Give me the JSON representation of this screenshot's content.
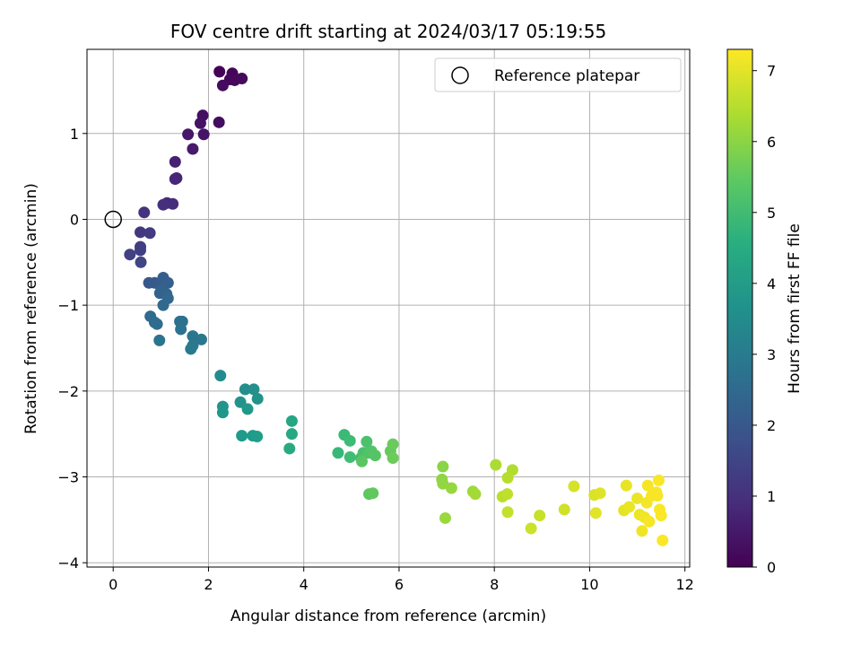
{
  "chart_data": {
    "type": "scatter",
    "title": "FOV centre drift starting at 2024/03/17 05:19:55",
    "xlabel": "Angular distance from reference (arcmin)",
    "ylabel": "Rotation from reference (arcmin)",
    "xlim": [
      -0.55,
      12.1
    ],
    "ylim": [
      -4.05,
      1.98
    ],
    "xticks": [
      0,
      2,
      4,
      6,
      8,
      10,
      12
    ],
    "yticks": [
      -4,
      -3,
      -2,
      -1,
      0,
      1
    ],
    "grid": true,
    "legend": {
      "position": "top-right",
      "entries": [
        "Reference platepar"
      ]
    },
    "reference_point": {
      "x": 0,
      "y": 0,
      "label": "Reference platepar"
    },
    "colorbar": {
      "label": "Hours from first FF file",
      "range": [
        0,
        7.3
      ],
      "ticks": [
        0,
        1,
        2,
        3,
        4,
        5,
        6,
        7
      ],
      "colormap": "viridis"
    },
    "points": [
      {
        "x": 2.23,
        "y": 1.72,
        "c": 0.05
      },
      {
        "x": 2.5,
        "y": 1.7,
        "c": 0.1
      },
      {
        "x": 2.45,
        "y": 1.63,
        "c": 0.12
      },
      {
        "x": 2.55,
        "y": 1.62,
        "c": 0.15
      },
      {
        "x": 2.7,
        "y": 1.64,
        "c": 0.18
      },
      {
        "x": 2.3,
        "y": 1.56,
        "c": 0.2
      },
      {
        "x": 2.22,
        "y": 1.13,
        "c": 0.25
      },
      {
        "x": 1.88,
        "y": 1.21,
        "c": 0.3
      },
      {
        "x": 1.83,
        "y": 1.12,
        "c": 0.35
      },
      {
        "x": 1.9,
        "y": 0.99,
        "c": 0.4
      },
      {
        "x": 1.57,
        "y": 0.99,
        "c": 0.45
      },
      {
        "x": 1.67,
        "y": 0.82,
        "c": 0.55
      },
      {
        "x": 1.3,
        "y": 0.67,
        "c": 0.65
      },
      {
        "x": 1.33,
        "y": 0.48,
        "c": 0.75
      },
      {
        "x": 1.3,
        "y": 0.47,
        "c": 0.8
      },
      {
        "x": 1.13,
        "y": 0.19,
        "c": 0.9
      },
      {
        "x": 1.25,
        "y": 0.18,
        "c": 0.95
      },
      {
        "x": 1.05,
        "y": 0.17,
        "c": 1.0
      },
      {
        "x": 0.65,
        "y": 0.08,
        "c": 1.1
      },
      {
        "x": 0.57,
        "y": -0.15,
        "c": 1.2
      },
      {
        "x": 0.77,
        "y": -0.16,
        "c": 1.25
      },
      {
        "x": 0.57,
        "y": -0.32,
        "c": 1.3
      },
      {
        "x": 0.57,
        "y": -0.36,
        "c": 1.35
      },
      {
        "x": 0.35,
        "y": -0.41,
        "c": 1.4
      },
      {
        "x": 0.58,
        "y": -0.5,
        "c": 1.5
      },
      {
        "x": 0.75,
        "y": -0.74,
        "c": 2.0
      },
      {
        "x": 0.87,
        "y": -0.74,
        "c": 2.05
      },
      {
        "x": 0.97,
        "y": -0.76,
        "c": 2.1
      },
      {
        "x": 1.05,
        "y": -0.68,
        "c": 2.15
      },
      {
        "x": 1.15,
        "y": -0.74,
        "c": 2.2
      },
      {
        "x": 1.02,
        "y": -0.82,
        "c": 2.25
      },
      {
        "x": 0.98,
        "y": -0.86,
        "c": 2.3
      },
      {
        "x": 1.12,
        "y": -0.87,
        "c": 2.35
      },
      {
        "x": 1.15,
        "y": -0.92,
        "c": 2.4
      },
      {
        "x": 1.05,
        "y": -1.0,
        "c": 2.45
      },
      {
        "x": 0.78,
        "y": -1.13,
        "c": 2.5
      },
      {
        "x": 0.87,
        "y": -1.2,
        "c": 2.55
      },
      {
        "x": 0.92,
        "y": -1.22,
        "c": 2.6
      },
      {
        "x": 1.4,
        "y": -1.19,
        "c": 2.65
      },
      {
        "x": 1.45,
        "y": -1.19,
        "c": 2.7
      },
      {
        "x": 1.42,
        "y": -1.28,
        "c": 2.75
      },
      {
        "x": 0.97,
        "y": -1.41,
        "c": 2.8
      },
      {
        "x": 1.67,
        "y": -1.36,
        "c": 2.85
      },
      {
        "x": 1.85,
        "y": -1.4,
        "c": 2.9
      },
      {
        "x": 1.67,
        "y": -1.47,
        "c": 2.95
      },
      {
        "x": 1.63,
        "y": -1.51,
        "c": 3.0
      },
      {
        "x": 2.25,
        "y": -1.82,
        "c": 3.5
      },
      {
        "x": 2.77,
        "y": -1.98,
        "c": 3.6
      },
      {
        "x": 2.95,
        "y": -1.98,
        "c": 3.65
      },
      {
        "x": 3.03,
        "y": -2.09,
        "c": 3.7
      },
      {
        "x": 2.67,
        "y": -2.13,
        "c": 3.75
      },
      {
        "x": 2.3,
        "y": -2.18,
        "c": 3.8
      },
      {
        "x": 2.3,
        "y": -2.25,
        "c": 3.85
      },
      {
        "x": 2.82,
        "y": -2.21,
        "c": 3.9
      },
      {
        "x": 2.7,
        "y": -2.52,
        "c": 3.95
      },
      {
        "x": 2.93,
        "y": -2.52,
        "c": 4.0
      },
      {
        "x": 3.02,
        "y": -2.53,
        "c": 4.05
      },
      {
        "x": 3.75,
        "y": -2.35,
        "c": 4.3
      },
      {
        "x": 3.75,
        "y": -2.5,
        "c": 4.35
      },
      {
        "x": 3.7,
        "y": -2.67,
        "c": 4.4
      },
      {
        "x": 4.72,
        "y": -2.72,
        "c": 4.9
      },
      {
        "x": 4.85,
        "y": -2.51,
        "c": 4.95
      },
      {
        "x": 4.97,
        "y": -2.58,
        "c": 5.0
      },
      {
        "x": 4.97,
        "y": -2.77,
        "c": 5.05
      },
      {
        "x": 5.2,
        "y": -2.78,
        "c": 5.1
      },
      {
        "x": 5.25,
        "y": -2.72,
        "c": 5.15
      },
      {
        "x": 5.32,
        "y": -2.59,
        "c": 5.2
      },
      {
        "x": 5.35,
        "y": -2.72,
        "c": 5.25
      },
      {
        "x": 5.42,
        "y": -2.7,
        "c": 5.3
      },
      {
        "x": 5.5,
        "y": -2.75,
        "c": 5.35
      },
      {
        "x": 5.22,
        "y": -2.82,
        "c": 5.4
      },
      {
        "x": 5.37,
        "y": -3.2,
        "c": 5.45
      },
      {
        "x": 5.45,
        "y": -3.19,
        "c": 5.5
      },
      {
        "x": 5.82,
        "y": -2.7,
        "c": 5.55
      },
      {
        "x": 5.87,
        "y": -2.62,
        "c": 5.6
      },
      {
        "x": 5.87,
        "y": -2.78,
        "c": 5.65
      },
      {
        "x": 6.92,
        "y": -2.88,
        "c": 6.0
      },
      {
        "x": 6.9,
        "y": -3.03,
        "c": 6.05
      },
      {
        "x": 6.92,
        "y": -3.08,
        "c": 6.1
      },
      {
        "x": 7.1,
        "y": -3.13,
        "c": 6.15
      },
      {
        "x": 6.97,
        "y": -3.48,
        "c": 6.2
      },
      {
        "x": 7.55,
        "y": -3.17,
        "c": 6.25
      },
      {
        "x": 7.6,
        "y": -3.2,
        "c": 6.3
      },
      {
        "x": 8.03,
        "y": -2.86,
        "c": 6.4
      },
      {
        "x": 8.38,
        "y": -2.92,
        "c": 6.45
      },
      {
        "x": 8.28,
        "y": -3.01,
        "c": 6.5
      },
      {
        "x": 8.17,
        "y": -3.23,
        "c": 6.55
      },
      {
        "x": 8.27,
        "y": -3.2,
        "c": 6.6
      },
      {
        "x": 8.28,
        "y": -3.41,
        "c": 6.65
      },
      {
        "x": 8.95,
        "y": -3.45,
        "c": 6.7
      },
      {
        "x": 8.77,
        "y": -3.6,
        "c": 6.75
      },
      {
        "x": 9.47,
        "y": -3.38,
        "c": 6.8
      },
      {
        "x": 9.67,
        "y": -3.11,
        "c": 6.85
      },
      {
        "x": 10.1,
        "y": -3.21,
        "c": 6.9
      },
      {
        "x": 10.22,
        "y": -3.19,
        "c": 6.95
      },
      {
        "x": 10.13,
        "y": -3.42,
        "c": 7.0
      },
      {
        "x": 10.72,
        "y": -3.39,
        "c": 7.02
      },
      {
        "x": 10.77,
        "y": -3.1,
        "c": 7.05
      },
      {
        "x": 10.83,
        "y": -3.35,
        "c": 7.08
      },
      {
        "x": 11.0,
        "y": -3.25,
        "c": 7.1
      },
      {
        "x": 11.05,
        "y": -3.44,
        "c": 7.12
      },
      {
        "x": 11.1,
        "y": -3.63,
        "c": 7.14
      },
      {
        "x": 11.15,
        "y": -3.47,
        "c": 7.16
      },
      {
        "x": 11.2,
        "y": -3.3,
        "c": 7.18
      },
      {
        "x": 11.22,
        "y": -3.1,
        "c": 7.2
      },
      {
        "x": 11.25,
        "y": -3.52,
        "c": 7.21
      },
      {
        "x": 11.3,
        "y": -3.22,
        "c": 7.22
      },
      {
        "x": 11.4,
        "y": -3.18,
        "c": 7.23
      },
      {
        "x": 11.42,
        "y": -3.22,
        "c": 7.24
      },
      {
        "x": 11.45,
        "y": -3.04,
        "c": 7.25
      },
      {
        "x": 11.47,
        "y": -3.38,
        "c": 7.26
      },
      {
        "x": 11.5,
        "y": -3.45,
        "c": 7.27
      },
      {
        "x": 11.53,
        "y": -3.74,
        "c": 7.28
      }
    ]
  }
}
